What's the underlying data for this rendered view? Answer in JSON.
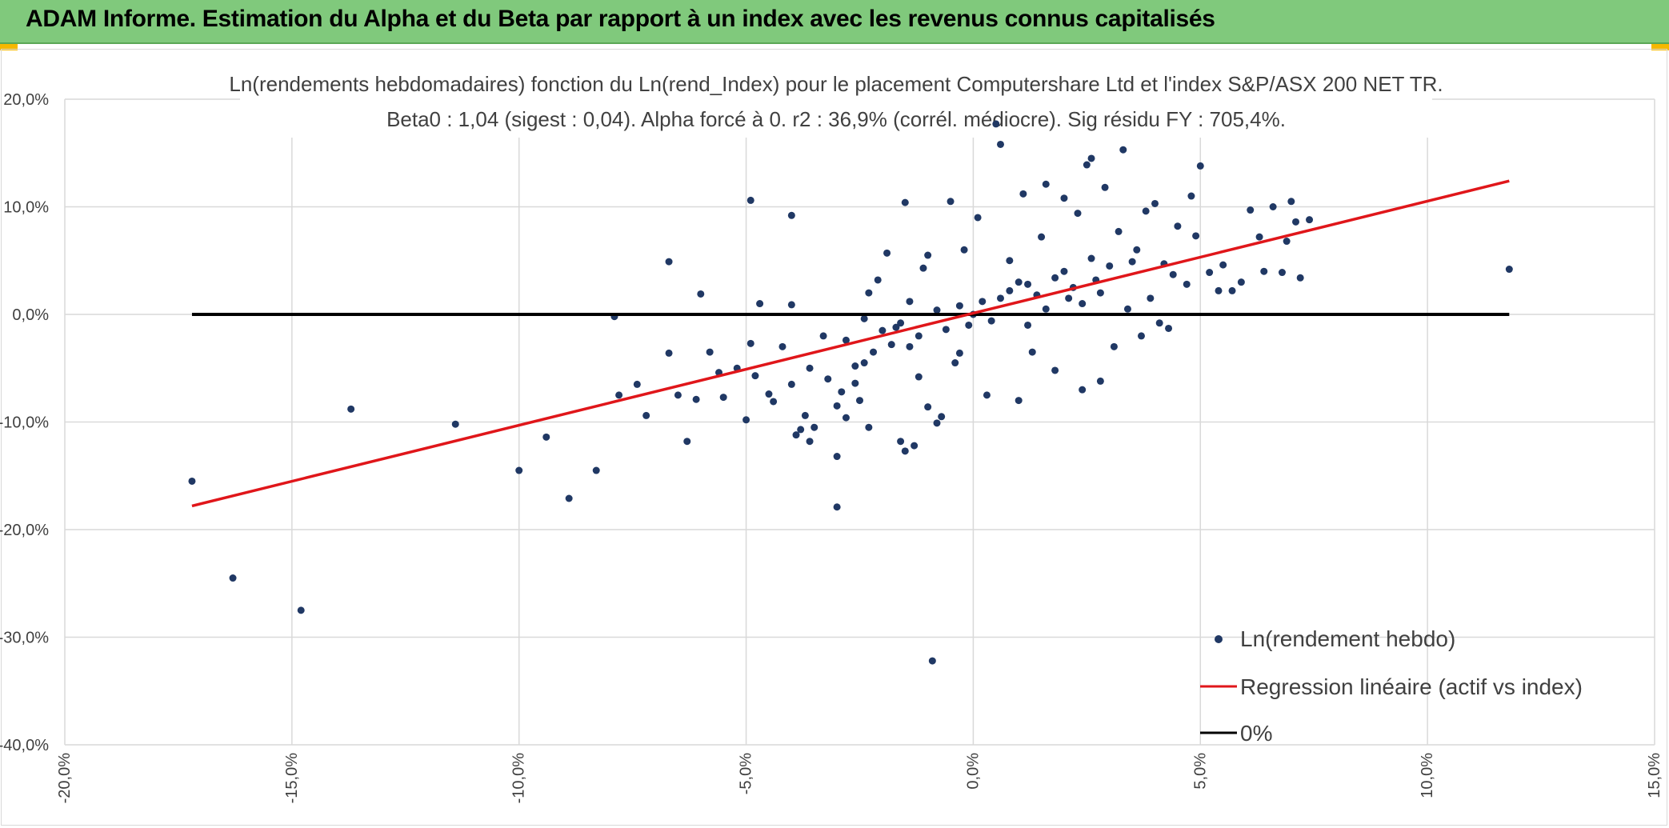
{
  "header": {
    "title": "ADAM Informe. Estimation du Alpha et du Beta par rapport à un index avec les revenus connus capitalisés"
  },
  "colors": {
    "header_bg": "#80c97c",
    "points": "#203864",
    "regression": "#e0161a",
    "zero_line": "#000000",
    "grid": "#d9d9d9",
    "accent_corner": "#f5b800"
  },
  "chart_data": {
    "type": "scatter",
    "title_lines": [
      "Ln(rendements hebdomadaires) fonction du Ln(rend_Index) pour le placement Computershare Ltd et l'index S&P/ASX 200 NET TR.",
      "Beta0 : 1,04 (sigest : 0,04). Alpha forcé à 0. r2 : 36,9% (corrél. médiocre). Sig résidu FY : 705,4%."
    ],
    "xlim": [
      -0.2,
      0.15
    ],
    "ylim": [
      -0.4,
      0.2
    ],
    "x_ticks": [
      -0.2,
      -0.15,
      -0.1,
      -0.05,
      0.0,
      0.05,
      0.1,
      0.15
    ],
    "x_tick_labels": [
      "-20,0%",
      "-15,0%",
      "-10,0%",
      "-5,0%",
      "0,0%",
      "5,0%",
      "10,0%",
      "15,0%"
    ],
    "y_ticks": [
      0.2,
      0.1,
      0.0,
      -0.1,
      -0.2,
      -0.3,
      -0.4
    ],
    "y_tick_labels": [
      "20,0%",
      "10,0%",
      "0,0%",
      "-10,0%",
      "-20,0%",
      "-30,0%",
      "-40,0%"
    ],
    "grid": true,
    "legend_position": "bottom-right",
    "legend": [
      {
        "label": "Ln(rendement hebdo)",
        "type": "marker"
      },
      {
        "label": "Regression linéaire (actif vs index)",
        "type": "line"
      },
      {
        "label": "0%",
        "type": "line"
      }
    ],
    "series": [
      {
        "name": "Ln(rendement hebdo)",
        "type": "scatter",
        "points": [
          [
            -0.172,
            -0.155
          ],
          [
            -0.163,
            -0.245
          ],
          [
            -0.148,
            -0.275
          ],
          [
            -0.137,
            -0.088
          ],
          [
            -0.114,
            -0.102
          ],
          [
            -0.1,
            -0.145
          ],
          [
            -0.094,
            -0.114
          ],
          [
            -0.089,
            -0.171
          ],
          [
            -0.083,
            -0.145
          ],
          [
            -0.079,
            -0.002
          ],
          [
            -0.078,
            -0.075
          ],
          [
            -0.074,
            -0.065
          ],
          [
            -0.072,
            -0.094
          ],
          [
            -0.067,
            0.049
          ],
          [
            -0.067,
            -0.036
          ],
          [
            -0.065,
            -0.075
          ],
          [
            -0.061,
            -0.079
          ],
          [
            -0.06,
            0.019
          ],
          [
            -0.063,
            -0.118
          ],
          [
            -0.058,
            -0.035
          ],
          [
            -0.056,
            -0.054
          ],
          [
            -0.055,
            -0.077
          ],
          [
            -0.052,
            -0.05
          ],
          [
            -0.05,
            -0.098
          ],
          [
            -0.049,
            -0.027
          ],
          [
            -0.048,
            -0.057
          ],
          [
            -0.047,
            0.01
          ],
          [
            -0.045,
            -0.074
          ],
          [
            -0.044,
            -0.081
          ],
          [
            -0.042,
            -0.03
          ],
          [
            -0.04,
            -0.065
          ],
          [
            -0.039,
            -0.112
          ],
          [
            -0.037,
            -0.094
          ],
          [
            -0.036,
            -0.05
          ],
          [
            -0.035,
            -0.105
          ],
          [
            -0.033,
            -0.02
          ],
          [
            -0.032,
            -0.06
          ],
          [
            -0.03,
            -0.085
          ],
          [
            -0.049,
            0.106
          ],
          [
            -0.04,
            0.092
          ],
          [
            -0.04,
            0.009
          ],
          [
            -0.038,
            -0.107
          ],
          [
            -0.036,
            -0.118
          ],
          [
            -0.03,
            -0.132
          ],
          [
            -0.03,
            -0.179
          ],
          [
            -0.029,
            -0.072
          ],
          [
            -0.028,
            -0.096
          ],
          [
            -0.026,
            -0.064
          ],
          [
            -0.025,
            -0.08
          ],
          [
            -0.024,
            -0.045
          ],
          [
            -0.023,
            -0.105
          ],
          [
            -0.023,
            0.02
          ],
          [
            -0.021,
            0.032
          ],
          [
            -0.019,
            0.057
          ],
          [
            -0.017,
            -0.012
          ],
          [
            -0.016,
            -0.118
          ],
          [
            -0.015,
            -0.127
          ],
          [
            -0.015,
            0.104
          ],
          [
            -0.014,
            -0.03
          ],
          [
            -0.013,
            -0.122
          ],
          [
            -0.012,
            -0.058
          ],
          [
            -0.011,
            0.043
          ],
          [
            -0.01,
            -0.086
          ],
          [
            -0.01,
            0.055
          ],
          [
            -0.008,
            -0.101
          ],
          [
            -0.007,
            -0.095
          ],
          [
            -0.005,
            0.105
          ],
          [
            -0.004,
            -0.045
          ],
          [
            -0.003,
            -0.036
          ],
          [
            -0.002,
            0.06
          ],
          [
            -0.001,
            -0.01
          ],
          [
            0.001,
            0.09
          ],
          [
            0.003,
            -0.075
          ],
          [
            0.005,
            0.177
          ],
          [
            0.006,
            0.158
          ],
          [
            0.008,
            0.05
          ],
          [
            0.01,
            -0.08
          ],
          [
            0.011,
            0.112
          ],
          [
            0.012,
            0.028
          ],
          [
            0.013,
            -0.035
          ],
          [
            0.015,
            0.072
          ],
          [
            0.016,
            0.121
          ],
          [
            0.018,
            -0.052
          ],
          [
            0.02,
            0.108
          ],
          [
            0.021,
            0.015
          ],
          [
            0.023,
            0.094
          ],
          [
            0.024,
            -0.07
          ],
          [
            0.025,
            0.139
          ],
          [
            0.026,
            0.145
          ],
          [
            0.027,
            0.032
          ],
          [
            0.028,
            -0.062
          ],
          [
            0.029,
            0.118
          ],
          [
            0.03,
            0.045
          ],
          [
            0.031,
            -0.03
          ],
          [
            0.032,
            0.077
          ],
          [
            0.033,
            0.153
          ],
          [
            0.034,
            0.005
          ],
          [
            0.035,
            0.049
          ],
          [
            0.036,
            0.06
          ],
          [
            0.037,
            -0.02
          ],
          [
            0.038,
            0.096
          ],
          [
            0.039,
            0.015
          ],
          [
            0.04,
            0.103
          ],
          [
            0.041,
            -0.008
          ],
          [
            0.042,
            0.047
          ],
          [
            0.043,
            -0.013
          ],
          [
            0.044,
            0.037
          ],
          [
            0.045,
            0.082
          ],
          [
            0.047,
            0.028
          ],
          [
            0.048,
            0.11
          ],
          [
            0.049,
            0.073
          ],
          [
            0.05,
            0.138
          ],
          [
            0.052,
            0.039
          ],
          [
            0.054,
            0.022
          ],
          [
            0.055,
            0.046
          ],
          [
            0.057,
            0.022
          ],
          [
            0.059,
            0.03
          ],
          [
            0.061,
            0.097
          ],
          [
            0.063,
            0.072
          ],
          [
            0.064,
            0.04
          ],
          [
            0.066,
            0.1
          ],
          [
            0.068,
            0.039
          ],
          [
            0.069,
            0.068
          ],
          [
            0.07,
            0.105
          ],
          [
            0.071,
            0.086
          ],
          [
            0.072,
            0.034
          ],
          [
            0.074,
            0.088
          ],
          [
            0.118,
            0.042
          ],
          [
            -0.009,
            -0.322
          ],
          [
            0.0,
            0.0
          ],
          [
            0.002,
            0.012
          ],
          [
            -0.003,
            0.008
          ],
          [
            0.004,
            -0.006
          ],
          [
            0.006,
            0.015
          ],
          [
            -0.006,
            -0.014
          ],
          [
            0.008,
            0.022
          ],
          [
            -0.008,
            0.004
          ],
          [
            0.01,
            0.03
          ],
          [
            0.012,
            -0.01
          ],
          [
            -0.012,
            -0.02
          ],
          [
            0.014,
            0.018
          ],
          [
            -0.014,
            0.012
          ],
          [
            0.016,
            0.005
          ],
          [
            -0.016,
            -0.008
          ],
          [
            0.018,
            0.034
          ],
          [
            -0.018,
            -0.028
          ],
          [
            0.02,
            0.04
          ],
          [
            -0.02,
            -0.015
          ],
          [
            0.022,
            0.025
          ],
          [
            -0.022,
            -0.035
          ],
          [
            0.024,
            0.01
          ],
          [
            -0.024,
            -0.004
          ],
          [
            0.026,
            0.052
          ],
          [
            -0.026,
            -0.048
          ],
          [
            0.028,
            0.02
          ],
          [
            -0.028,
            -0.024
          ]
        ]
      },
      {
        "name": "Regression linéaire (actif vs index)",
        "type": "line",
        "points": [
          [
            -0.172,
            -0.178
          ],
          [
            0.118,
            0.124
          ]
        ]
      },
      {
        "name": "0%",
        "type": "line",
        "points": [
          [
            -0.172,
            0.0
          ],
          [
            0.118,
            0.0
          ]
        ]
      }
    ]
  }
}
